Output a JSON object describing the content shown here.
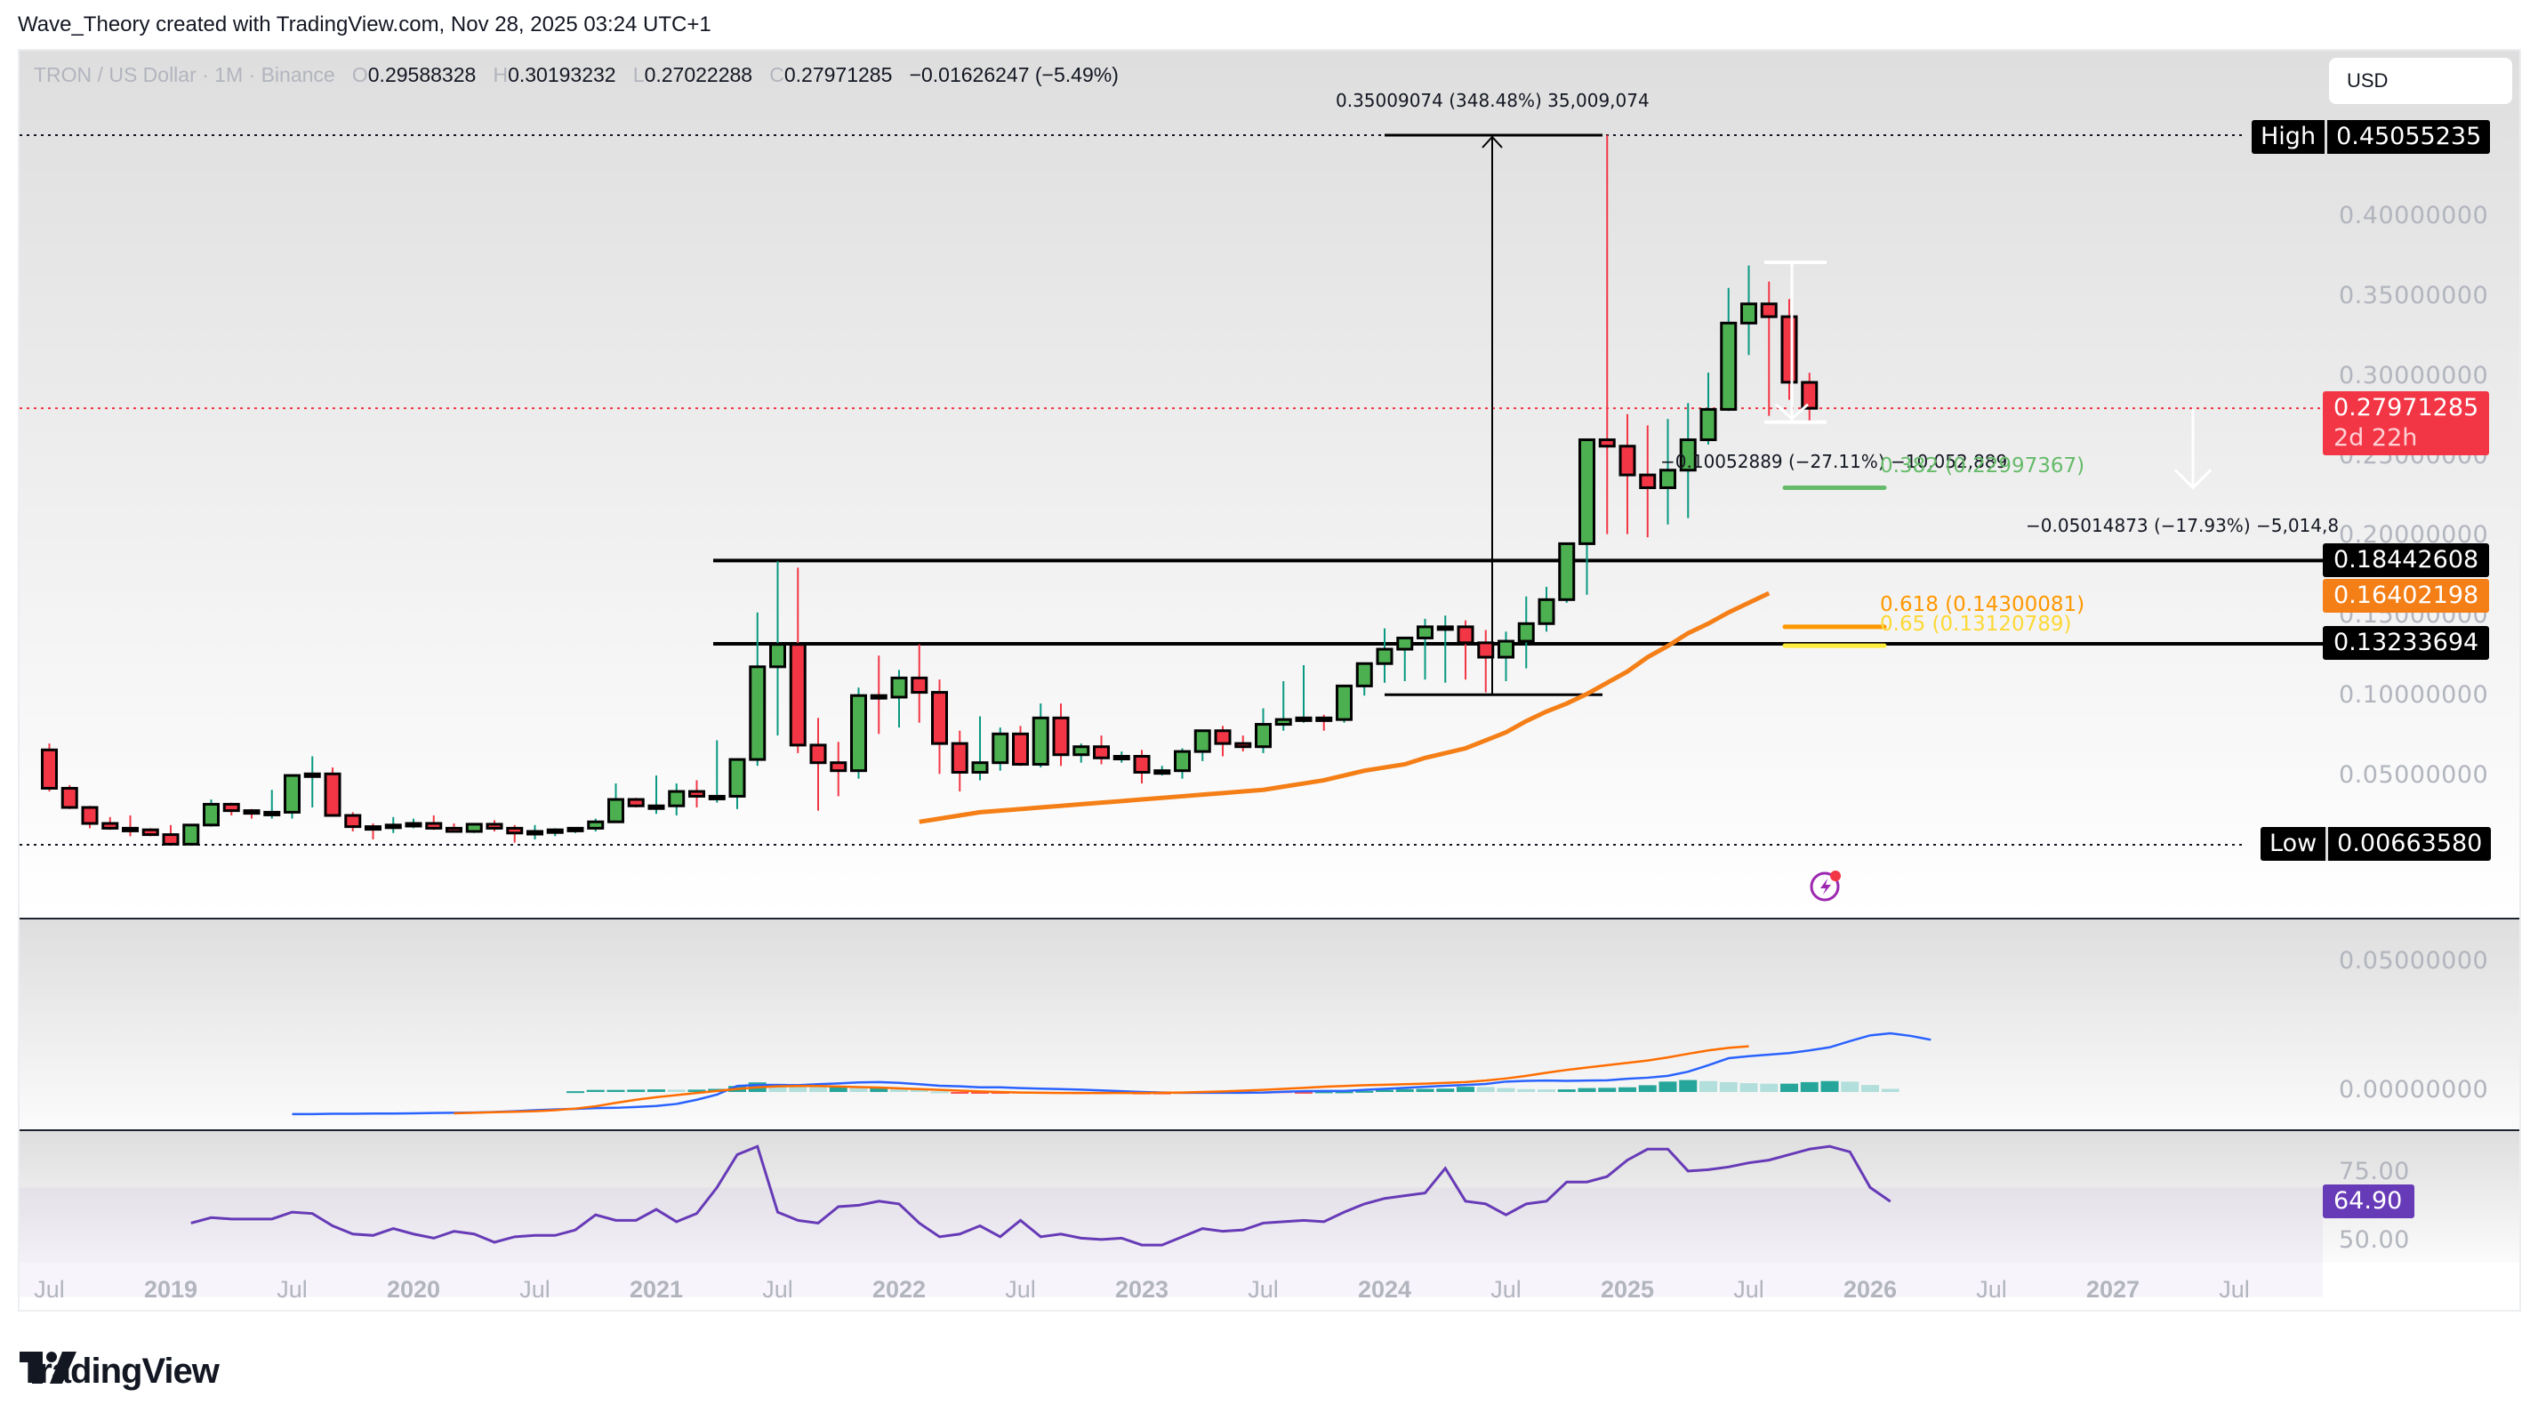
{
  "caption": "Wave_Theory created with TradingView.com, Nov 28, 2025 03:24 UTC+1",
  "legend": {
    "symbol": "TRON / US Dollar · 1M · Binance",
    "o_label": "O",
    "o": "0.29588328",
    "h_label": "H",
    "h": "0.30193232",
    "l_label": "L",
    "l": "0.27022288",
    "c_label": "C",
    "c": "0.27971285",
    "change": "−0.01626247 (−5.49%)"
  },
  "currency_button": "USD",
  "price_axis": {
    "ticks": [
      "0.40000000",
      "0.35000000",
      "0.30000000",
      "0.25000000",
      "0.20000000",
      "0.15000000",
      "0.10000000",
      "0.05000000"
    ],
    "high_label": "High",
    "high_value": "0.45055235",
    "low_label": "Low",
    "low_value": "0.00663580",
    "last_price": "0.27971285",
    "countdown": "2d 22h",
    "level_1": "0.18442608",
    "ema_value": "0.16402198",
    "level_2": "0.13233694"
  },
  "macd_axis": {
    "ticks": [
      "0.05000000",
      "0.00000000"
    ]
  },
  "rsi_axis": {
    "ticks": [
      "75.00",
      "50.00"
    ],
    "value": "64.90"
  },
  "time_axis": [
    {
      "label": "Jul",
      "year": false
    },
    {
      "label": "2019",
      "year": true
    },
    {
      "label": "Jul",
      "year": false
    },
    {
      "label": "2020",
      "year": true
    },
    {
      "label": "Jul",
      "year": false
    },
    {
      "label": "2021",
      "year": true
    },
    {
      "label": "Jul",
      "year": false
    },
    {
      "label": "2022",
      "year": true
    },
    {
      "label": "Jul",
      "year": false
    },
    {
      "label": "2023",
      "year": true
    },
    {
      "label": "Jul",
      "year": false
    },
    {
      "label": "2024",
      "year": true
    },
    {
      "label": "Jul",
      "year": false
    },
    {
      "label": "2025",
      "year": true
    },
    {
      "label": "Jul",
      "year": false
    },
    {
      "label": "2026",
      "year": true
    },
    {
      "label": "Jul",
      "year": false
    },
    {
      "label": "2027",
      "year": true
    },
    {
      "label": "Jul",
      "year": false
    }
  ],
  "annotations": {
    "rally": "0.35009074 (348.48%) 35,009,074",
    "drop_1": "−0.10052889 (−27.11%) −10,052,889",
    "drop_2": "−0.05014873 (−17.93%) −5,014,8",
    "fib_382": "0.382 (0.22997367)",
    "fib_618": "0.618 (0.14300081)",
    "fib_65": "0.65 (0.13120789)"
  },
  "colors": {
    "up": "#4caf50",
    "down": "#f23645",
    "up_wick": "#089981",
    "down_wick": "#f23645",
    "ema": "#f57f17",
    "macd": "#2962ff",
    "signal": "#ff6d00",
    "hist_up_strong": "#26a69a",
    "hist_up_weak": "#b2dfdb",
    "hist_down_strong": "#ff5252",
    "hist_down_weak": "#ffcdd2",
    "rsi": "#673ab7",
    "fib_382": "#66bb6a",
    "fib_618": "#ff9800",
    "fib_65": "#ffeb3b"
  },
  "brand": "TradingView",
  "chart_data": {
    "type": "candlestick",
    "title": "TRON / US Dollar · 1M · Binance",
    "xlabel": "",
    "ylabel": "USD",
    "ylim": [
      0.0,
      0.47
    ],
    "start": "2018-07",
    "candles": [
      [
        0.066,
        0.07,
        0.04,
        0.042
      ],
      [
        0.042,
        0.044,
        0.029,
        0.03
      ],
      [
        0.03,
        0.031,
        0.017,
        0.02
      ],
      [
        0.02,
        0.024,
        0.016,
        0.017
      ],
      [
        0.017,
        0.025,
        0.012,
        0.016
      ],
      [
        0.016,
        0.017,
        0.012,
        0.013
      ],
      [
        0.013,
        0.019,
        0.009,
        0.007
      ],
      [
        0.007,
        0.017,
        0.007,
        0.019
      ],
      [
        0.019,
        0.035,
        0.018,
        0.032
      ],
      [
        0.032,
        0.033,
        0.025,
        0.028
      ],
      [
        0.028,
        0.029,
        0.023,
        0.027
      ],
      [
        0.027,
        0.041,
        0.023,
        0.027
      ],
      [
        0.027,
        0.05,
        0.023,
        0.05
      ],
      [
        0.05,
        0.062,
        0.03,
        0.051
      ],
      [
        0.051,
        0.055,
        0.027,
        0.025
      ],
      [
        0.025,
        0.027,
        0.015,
        0.018
      ],
      [
        0.018,
        0.02,
        0.01,
        0.0175
      ],
      [
        0.0175,
        0.024,
        0.014,
        0.019
      ],
      [
        0.019,
        0.023,
        0.017,
        0.02
      ],
      [
        0.02,
        0.025,
        0.016,
        0.017
      ],
      [
        0.017,
        0.02,
        0.015,
        0.015
      ],
      [
        0.015,
        0.018,
        0.014,
        0.0195
      ],
      [
        0.0195,
        0.022,
        0.015,
        0.017
      ],
      [
        0.017,
        0.019,
        0.008,
        0.014
      ],
      [
        0.014,
        0.019,
        0.01,
        0.015
      ],
      [
        0.015,
        0.017,
        0.012,
        0.016
      ],
      [
        0.016,
        0.017,
        0.014,
        0.017
      ],
      [
        0.017,
        0.023,
        0.015,
        0.021
      ],
      [
        0.021,
        0.045,
        0.022,
        0.035
      ],
      [
        0.035,
        0.036,
        0.03,
        0.031
      ],
      [
        0.031,
        0.05,
        0.026,
        0.031
      ],
      [
        0.031,
        0.045,
        0.025,
        0.04
      ],
      [
        0.04,
        0.047,
        0.03,
        0.037
      ],
      [
        0.037,
        0.072,
        0.033,
        0.037
      ],
      [
        0.037,
        0.059,
        0.029,
        0.06
      ],
      [
        0.06,
        0.152,
        0.056,
        0.118
      ],
      [
        0.118,
        0.184,
        0.075,
        0.132
      ],
      [
        0.132,
        0.18,
        0.064,
        0.069
      ],
      [
        0.069,
        0.086,
        0.028,
        0.058
      ],
      [
        0.058,
        0.071,
        0.037,
        0.053
      ],
      [
        0.053,
        0.105,
        0.048,
        0.1
      ],
      [
        0.1,
        0.125,
        0.076,
        0.099
      ],
      [
        0.099,
        0.116,
        0.08,
        0.111
      ],
      [
        0.111,
        0.132,
        0.083,
        0.102
      ],
      [
        0.102,
        0.11,
        0.051,
        0.07
      ],
      [
        0.07,
        0.078,
        0.04,
        0.052
      ],
      [
        0.052,
        0.087,
        0.047,
        0.058
      ],
      [
        0.058,
        0.08,
        0.053,
        0.076
      ],
      [
        0.076,
        0.081,
        0.056,
        0.057
      ],
      [
        0.057,
        0.095,
        0.055,
        0.086
      ],
      [
        0.086,
        0.095,
        0.056,
        0.063
      ],
      [
        0.063,
        0.07,
        0.058,
        0.068
      ],
      [
        0.068,
        0.075,
        0.057,
        0.061
      ],
      [
        0.061,
        0.065,
        0.058,
        0.062
      ],
      [
        0.062,
        0.066,
        0.045,
        0.052
      ],
      [
        0.052,
        0.056,
        0.05,
        0.053
      ],
      [
        0.053,
        0.067,
        0.048,
        0.065
      ],
      [
        0.065,
        0.076,
        0.059,
        0.078
      ],
      [
        0.078,
        0.081,
        0.062,
        0.07
      ],
      [
        0.07,
        0.075,
        0.065,
        0.068
      ],
      [
        0.068,
        0.092,
        0.064,
        0.082
      ],
      [
        0.082,
        0.109,
        0.078,
        0.085
      ],
      [
        0.085,
        0.119,
        0.083,
        0.086
      ],
      [
        0.086,
        0.088,
        0.078,
        0.085
      ],
      [
        0.085,
        0.102,
        0.083,
        0.106
      ],
      [
        0.106,
        0.112,
        0.1,
        0.12
      ],
      [
        0.12,
        0.142,
        0.108,
        0.129
      ],
      [
        0.129,
        0.136,
        0.109,
        0.136
      ],
      [
        0.136,
        0.148,
        0.11,
        0.143
      ],
      [
        0.143,
        0.15,
        0.108,
        0.143
      ],
      [
        0.143,
        0.147,
        0.11,
        0.133
      ],
      [
        0.133,
        0.141,
        0.102,
        0.124
      ],
      [
        0.124,
        0.14,
        0.109,
        0.134
      ],
      [
        0.134,
        0.162,
        0.117,
        0.145
      ],
      [
        0.145,
        0.168,
        0.14,
        0.16
      ],
      [
        0.16,
        0.19,
        0.158,
        0.195
      ],
      [
        0.195,
        0.251,
        0.163,
        0.26
      ],
      [
        0.26,
        0.4506,
        0.201,
        0.256
      ],
      [
        0.256,
        0.276,
        0.201,
        0.238
      ],
      [
        0.238,
        0.269,
        0.199,
        0.23
      ],
      [
        0.23,
        0.273,
        0.207,
        0.241
      ],
      [
        0.241,
        0.283,
        0.211,
        0.26
      ],
      [
        0.26,
        0.302,
        0.257,
        0.279
      ],
      [
        0.279,
        0.355,
        0.278,
        0.333
      ],
      [
        0.333,
        0.369,
        0.313,
        0.345
      ],
      [
        0.345,
        0.359,
        0.275,
        0.337
      ],
      [
        0.337,
        0.348,
        0.285,
        0.296
      ],
      [
        0.2959,
        0.3019,
        0.2702,
        0.2797
      ]
    ],
    "ema": {
      "name": "EMA",
      "start_index": 43,
      "values": [
        0.021,
        0.023,
        0.025,
        0.027,
        0.028,
        0.029,
        0.03,
        0.031,
        0.032,
        0.033,
        0.034,
        0.035,
        0.036,
        0.037,
        0.038,
        0.039,
        0.04,
        0.041,
        0.043,
        0.045,
        0.047,
        0.05,
        0.053,
        0.055,
        0.057,
        0.061,
        0.064,
        0.067,
        0.072,
        0.077,
        0.084,
        0.09,
        0.095,
        0.101,
        0.108,
        0.115,
        0.124,
        0.131,
        0.139,
        0.145,
        0.152,
        0.158,
        0.164
      ]
    },
    "horizontal_levels": [
      0.18442608,
      0.13233694
    ],
    "fib_levels": [
      {
        "ratio": 0.382,
        "price": 0.22997367
      },
      {
        "ratio": 0.618,
        "price": 0.14300081
      },
      {
        "ratio": 0.65,
        "price": 0.13120789
      }
    ],
    "macd": {
      "ylim": [
        -0.01,
        0.062
      ],
      "macd_line_start_index": 12,
      "macd_line": [
        -0.0085,
        -0.0085,
        -0.0084,
        -0.0084,
        -0.0083,
        -0.0083,
        -0.0082,
        -0.0081,
        -0.008,
        -0.0079,
        -0.0077,
        -0.0074,
        -0.007,
        -0.0067,
        -0.0065,
        -0.0062,
        -0.0061,
        -0.0058,
        -0.0054,
        -0.0046,
        -0.003,
        -0.001,
        0.0023,
        0.0027,
        0.0027,
        0.0026,
        0.003,
        0.0033,
        0.0037,
        0.0038,
        0.0035,
        0.003,
        0.0024,
        0.0022,
        0.0018,
        0.0018,
        0.0015,
        0.0013,
        0.0011,
        0.0009,
        0.0006,
        0.0003,
        0.0,
        -0.0002,
        -0.0003,
        -0.0003,
        -0.0003,
        -0.0003,
        -0.0002,
        0.0001,
        0.0003,
        0.0004,
        0.0004,
        0.0008,
        0.0012,
        0.0016,
        0.002,
        0.0024,
        0.0027,
        0.0031,
        0.004,
        0.0043,
        0.0044,
        0.0043,
        0.0044,
        0.0045,
        0.0051,
        0.0055,
        0.0062,
        0.0078,
        0.0103,
        0.013,
        0.0138,
        0.0144,
        0.015,
        0.016,
        0.0172,
        0.0196,
        0.0218,
        0.0226,
        0.0216,
        0.0201
      ],
      "signal_line_start_index": 20,
      "signal_line": [
        -0.0082,
        -0.008,
        -0.0078,
        -0.0076,
        -0.0074,
        -0.007,
        -0.0064,
        -0.0055,
        -0.0042,
        -0.003,
        -0.002,
        -0.0012,
        -0.0004,
        0.0004,
        0.0012,
        0.0018,
        0.0022,
        0.0023,
        0.0023,
        0.0021,
        0.0019,
        0.0017,
        0.0014,
        0.0011,
        0.0008,
        0.0005,
        0.0002,
        0.0,
        -0.0002,
        -0.0003,
        -0.0004,
        -0.0004,
        -0.0004,
        -0.0004,
        -0.0004,
        -0.0003,
        -0.0002,
        0.0,
        0.0002,
        0.0005,
        0.0008,
        0.0012,
        0.0016,
        0.002,
        0.0023,
        0.0026,
        0.0028,
        0.003,
        0.0032,
        0.0035,
        0.0038,
        0.0044,
        0.0052,
        0.0062,
        0.0074,
        0.0085,
        0.0094,
        0.0103,
        0.0112,
        0.0121,
        0.0133,
        0.0147,
        0.016,
        0.017,
        0.0176
      ],
      "histogram_start_index": 26,
      "histogram": [
        0.0003,
        0.0008,
        0.0008,
        0.0009,
        0.001,
        0.0009,
        0.0009,
        0.0012,
        0.0023,
        0.0037,
        0.0032,
        0.0025,
        0.0019,
        0.0019,
        0.0018,
        0.0018,
        0.0017,
        0.001,
        0.0002,
        -0.0004,
        -0.0004,
        -0.0006,
        -0.0004,
        -0.0006,
        -0.0006,
        -0.0008,
        -0.0008,
        -0.0006,
        -0.0009,
        -0.0009,
        -0.0008,
        -0.0007,
        -0.0005,
        -0.0005,
        -0.0003,
        -0.0002,
        -0.0003,
        0.0002,
        0.0002,
        0.0004,
        0.0008,
        0.0011,
        0.0012,
        0.0013,
        0.002,
        0.0019,
        0.0015,
        0.0011,
        0.001,
        0.001,
        0.0015,
        0.0016,
        0.0018,
        0.0026,
        0.004,
        0.0046,
        0.0042,
        0.0038,
        0.0034,
        0.0032,
        0.0032,
        0.0038,
        0.0042,
        0.004,
        0.0027,
        0.0012
      ]
    },
    "rsi": {
      "ylim": [
        45,
        88
      ],
      "start_index": 7,
      "values": [
        57,
        59,
        58.5,
        58.5,
        58.5,
        61,
        60.5,
        56,
        53,
        52.5,
        55,
        53,
        51.5,
        54,
        53,
        50,
        52,
        52.5,
        52.5,
        54.5,
        60,
        58,
        58,
        62,
        57.5,
        60.5,
        70,
        82,
        85,
        61,
        58,
        57,
        63,
        63.5,
        65,
        64,
        57,
        52,
        53,
        56,
        52,
        58,
        52,
        53,
        51.5,
        51,
        51.5,
        49,
        49,
        52,
        55,
        54,
        54.5,
        57,
        57.5,
        58,
        57.5,
        61,
        64,
        66,
        67,
        68,
        77,
        65,
        64,
        60,
        64,
        65,
        72,
        72,
        74,
        80,
        84,
        84,
        76,
        76.5,
        77.5,
        79,
        80,
        82,
        84,
        85,
        83,
        70,
        64.9
      ]
    }
  }
}
